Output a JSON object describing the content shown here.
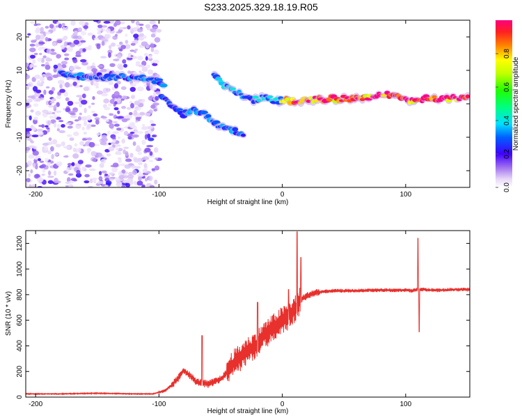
{
  "title": "S233.2025.329.18.19.R05",
  "chart_data": [
    {
      "type": "heatmap",
      "title": "S233.2025.329.18.19.R05",
      "xlabel": "Height of straight line (km)",
      "ylabel": "Frequency (Hz)",
      "xlim": [
        -208,
        152
      ],
      "ylim": [
        -25,
        25
      ],
      "xticks": [
        -200,
        -100,
        0,
        100
      ],
      "yticks": [
        -20,
        -10,
        0,
        10,
        20
      ],
      "colorbar": {
        "label": "Normalized spectral amplitude",
        "range": [
          0.0,
          1.0
        ],
        "ticks": [
          0.0,
          0.2,
          0.4,
          0.6,
          0.8
        ]
      },
      "features": [
        {
          "name": "noise-region",
          "x_range": [
            -208,
            -100
          ],
          "freq_range": [
            -25,
            25
          ],
          "amplitude": 0.1
        },
        {
          "name": "band-upper",
          "points": [
            [
              -180,
              9
            ],
            [
              -160,
              8
            ],
            [
              -145,
              8
            ],
            [
              -120,
              8
            ],
            [
              -100,
              7
            ],
            [
              -95,
              5
            ]
          ],
          "amplitude": 0.3
        },
        {
          "name": "band-descending",
          "points": [
            [
              -98,
              3
            ],
            [
              -90,
              0
            ],
            [
              -80,
              -3
            ],
            [
              -70,
              -2
            ],
            [
              -60,
              -4
            ],
            [
              -50,
              -7
            ],
            [
              -40,
              -8
            ],
            [
              -30,
              -10
            ]
          ],
          "amplitude": 0.3
        },
        {
          "name": "band-rising",
          "points": [
            [
              -55,
              9
            ],
            [
              -45,
              5
            ],
            [
              -35,
              3
            ],
            [
              -25,
              1
            ],
            [
              -15,
              2
            ],
            [
              -5,
              1
            ],
            [
              0,
              1
            ]
          ],
          "amplitude": 0.35
        },
        {
          "name": "band-stable",
          "points": [
            [
              0,
              1
            ],
            [
              20,
              1
            ],
            [
              40,
              1.5
            ],
            [
              60,
              1.5
            ],
            [
              75,
              2.5
            ],
            [
              90,
              3
            ],
            [
              100,
              1
            ],
            [
              110,
              1.5
            ],
            [
              130,
              1.5
            ],
            [
              152,
              1.5
            ]
          ],
          "amplitude": 0.95
        }
      ]
    },
    {
      "type": "line",
      "xlabel": "Height of straight line (km)",
      "ylabel": "SNR (10 * v/v)",
      "xlim": [
        -208,
        152
      ],
      "ylim": [
        0,
        1300
      ],
      "xticks": [
        -200,
        -100,
        0,
        100
      ],
      "yticks": [
        0,
        200,
        400,
        600,
        800,
        1000,
        1200
      ],
      "color": "#e8302c",
      "series": [
        {
          "name": "SNR",
          "x": [
            -208,
            -180,
            -150,
            -120,
            -105,
            -95,
            -90,
            -85,
            -80,
            -75,
            -70,
            -65,
            -60,
            -55,
            -50,
            -45,
            -40,
            -35,
            -30,
            -25,
            -20,
            -15,
            -10,
            -5,
            0,
            5,
            10,
            13,
            15,
            20,
            25,
            30,
            40,
            50,
            60,
            70,
            80,
            90,
            100,
            105,
            110,
            115,
            120,
            130,
            140,
            152
          ],
          "y": [
            25,
            25,
            30,
            25,
            25,
            50,
            90,
            140,
            210,
            170,
            120,
            110,
            100,
            120,
            140,
            190,
            260,
            300,
            350,
            380,
            420,
            480,
            520,
            560,
            600,
            630,
            680,
            730,
            760,
            790,
            810,
            820,
            830,
            830,
            830,
            835,
            835,
            835,
            835,
            830,
            840,
            840,
            835,
            835,
            840,
            840
          ]
        }
      ],
      "spikes": [
        {
          "x": -65,
          "y": 480
        },
        {
          "x": -20,
          "y": 740
        },
        {
          "x": 5,
          "y": 840
        },
        {
          "x": 12,
          "y": 1290
        },
        {
          "x": 15,
          "y": 1090
        },
        {
          "x": 110,
          "y": 1240
        },
        {
          "x": 111,
          "y": 510
        }
      ]
    }
  ]
}
